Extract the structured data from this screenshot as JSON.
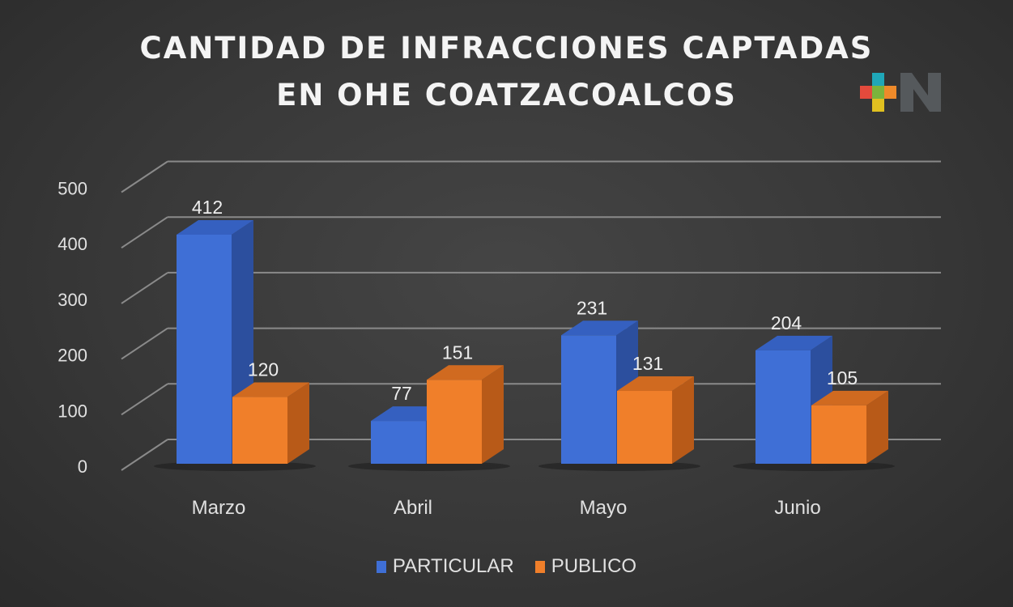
{
  "chart_data": {
    "type": "bar",
    "title": "CANTIDAD DE INFRACCIONES CAPTADAS EN OHE COATZACOALCOS",
    "title_lines": [
      "CANTIDAD DE INFRACCIONES CAPTADAS",
      "EN OHE COATZACOALCOS"
    ],
    "categories": [
      "Marzo",
      "Abril",
      "Mayo",
      "Junio"
    ],
    "series": [
      {
        "name": "PARTICULAR",
        "values": [
          412,
          77,
          231,
          204
        ],
        "color": "#3f6fd6"
      },
      {
        "name": "PUBLICO",
        "values": [
          120,
          151,
          131,
          105
        ],
        "color": "#f07f2a"
      }
    ],
    "yticks": [
      0,
      100,
      200,
      300,
      400,
      500
    ],
    "ylim": [
      0,
      500
    ],
    "grid": true,
    "style": "3d-column",
    "legend_position": "bottom",
    "background": "#3a3a3a"
  },
  "logo": {
    "text": "+N",
    "colors": [
      "#e34a3c",
      "#1fa7b8",
      "#7bb33c",
      "#ee8a2a",
      "#e0c020",
      "#55595c"
    ]
  }
}
